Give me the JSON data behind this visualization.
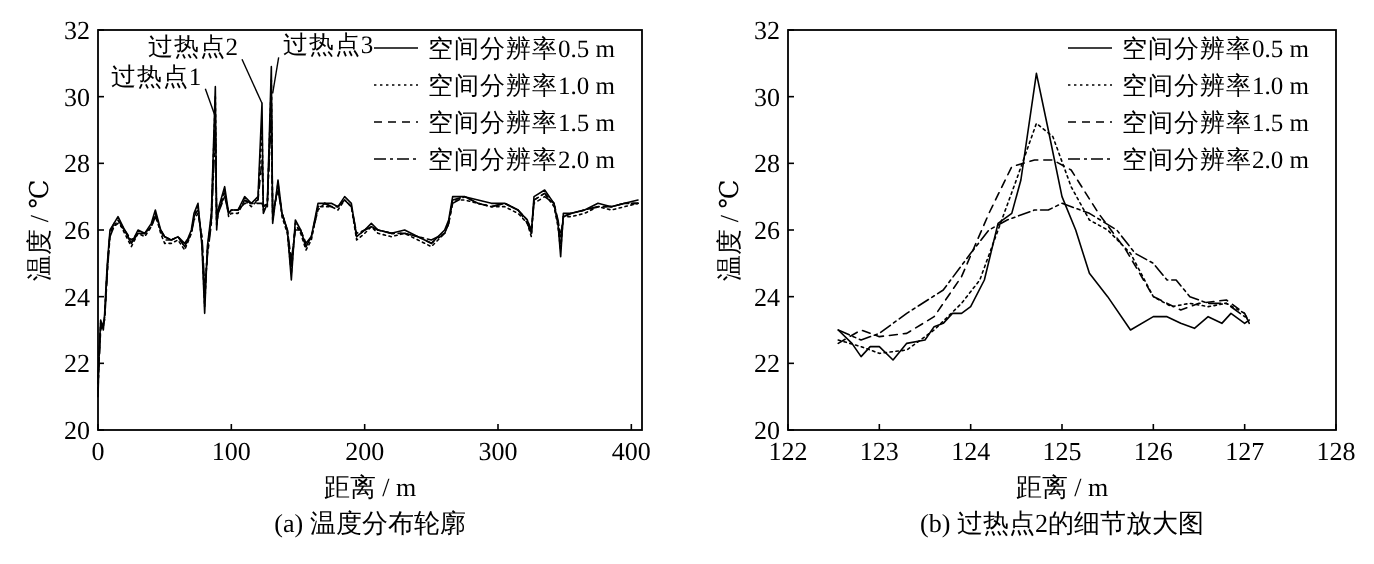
{
  "chart_data": [
    {
      "type": "line",
      "title": "(a) 温度分布轮廓",
      "xlabel": "距离 / m",
      "ylabel": "温度 / ℃",
      "xlim": [
        0,
        408
      ],
      "xticks": [
        0,
        100,
        200,
        300,
        400
      ],
      "ylim": [
        20,
        32
      ],
      "yticks": [
        20,
        22,
        24,
        26,
        28,
        30,
        32
      ],
      "legend": "top right",
      "grid": false,
      "x": [
        0,
        1,
        2,
        4,
        5,
        6,
        7,
        8,
        9,
        12,
        15,
        20,
        25,
        30,
        35,
        40,
        43,
        47,
        50,
        55,
        60,
        65,
        70,
        72,
        75,
        78,
        80,
        82,
        85,
        88,
        89,
        90,
        95,
        98,
        100,
        105,
        110,
        115,
        120,
        123,
        124,
        127,
        130,
        131,
        135,
        138,
        142,
        145,
        148,
        152,
        156,
        160,
        165,
        170,
        175,
        180,
        185,
        190,
        194,
        200,
        205,
        210,
        220,
        230,
        240,
        250,
        260,
        263,
        266,
        275,
        285,
        295,
        305,
        315,
        322,
        325,
        327,
        335,
        342,
        345,
        347,
        349,
        355,
        365,
        375,
        385,
        395,
        405
      ],
      "series": [
        {
          "name": "空间分辨率0.5 m",
          "color": "#000000",
          "line_style": "solid",
          "values": [
            21.0,
            22.5,
            23.3,
            23.0,
            23.5,
            24.3,
            25.0,
            25.5,
            26.0,
            26.2,
            26.4,
            26.0,
            25.6,
            26.0,
            25.9,
            26.2,
            26.6,
            26.0,
            25.8,
            25.7,
            25.8,
            25.5,
            26.0,
            26.5,
            26.8,
            25.5,
            23.5,
            25.5,
            26.5,
            30.3,
            26.0,
            26.6,
            27.3,
            26.5,
            26.6,
            26.6,
            27.0,
            26.8,
            27.0,
            29.8,
            26.5,
            26.8,
            30.9,
            26.2,
            27.5,
            26.5,
            26.0,
            24.5,
            26.3,
            26.0,
            25.5,
            25.8,
            26.8,
            26.8,
            26.8,
            26.7,
            27.0,
            26.8,
            25.8,
            26.0,
            26.2,
            26.0,
            25.9,
            26.0,
            25.8,
            25.6,
            26.0,
            26.3,
            27.0,
            27.0,
            26.9,
            26.8,
            26.8,
            26.6,
            26.3,
            25.9,
            27.0,
            27.2,
            26.8,
            26.2,
            25.2,
            26.5,
            26.5,
            26.6,
            26.8,
            26.7,
            26.8,
            26.9
          ]
        },
        {
          "name": "空间分辨率1.0 m",
          "color": "#000000",
          "line_style": "dotted",
          "values": [
            21.2,
            22.4,
            23.2,
            23.1,
            23.4,
            24.2,
            24.9,
            25.4,
            25.9,
            26.1,
            26.3,
            25.9,
            25.5,
            25.9,
            25.8,
            26.1,
            26.5,
            25.9,
            25.6,
            25.6,
            25.7,
            25.4,
            25.9,
            26.4,
            26.7,
            25.6,
            23.7,
            25.4,
            26.4,
            30.0,
            26.1,
            26.5,
            27.2,
            26.4,
            26.5,
            26.5,
            26.9,
            26.7,
            26.9,
            29.2,
            26.6,
            26.7,
            30.5,
            26.3,
            27.4,
            26.4,
            25.9,
            24.7,
            26.2,
            25.9,
            25.4,
            25.7,
            26.7,
            26.7,
            26.7,
            26.6,
            26.9,
            26.7,
            25.7,
            25.9,
            26.1,
            25.9,
            25.8,
            25.9,
            25.7,
            25.5,
            25.9,
            26.2,
            26.9,
            26.9,
            26.8,
            26.7,
            26.7,
            26.5,
            26.2,
            25.8,
            26.9,
            27.1,
            26.7,
            26.1,
            25.4,
            26.4,
            26.4,
            26.5,
            26.7,
            26.6,
            26.7,
            26.8
          ]
        },
        {
          "name": "空间分辨率1.5 m",
          "color": "#000000",
          "line_style": "dashed",
          "values": [
            21.4,
            22.3,
            23.1,
            23.2,
            23.4,
            24.1,
            24.8,
            25.4,
            25.9,
            26.2,
            26.3,
            26.0,
            25.6,
            25.9,
            25.9,
            26.1,
            26.5,
            26.0,
            25.7,
            25.7,
            25.8,
            25.5,
            25.9,
            26.4,
            26.6,
            25.7,
            24.0,
            25.3,
            26.3,
            29.5,
            26.2,
            26.5,
            27.1,
            26.5,
            26.6,
            26.6,
            26.9,
            26.8,
            26.9,
            28.1,
            26.7,
            26.8,
            30.0,
            26.4,
            27.3,
            26.5,
            26.0,
            24.9,
            26.1,
            26.0,
            25.5,
            25.8,
            26.7,
            26.8,
            26.7,
            26.7,
            26.9,
            26.7,
            25.8,
            26.0,
            26.1,
            26.0,
            25.9,
            25.9,
            25.8,
            25.6,
            25.9,
            26.2,
            26.9,
            27.0,
            26.8,
            26.7,
            26.8,
            26.6,
            26.2,
            25.9,
            26.9,
            27.1,
            26.8,
            26.2,
            25.6,
            26.4,
            26.5,
            26.6,
            26.7,
            26.7,
            26.8,
            26.8
          ]
        },
        {
          "name": "空间分辨率2.0 m",
          "color": "#000000",
          "line_style": "dashdot",
          "values": [
            21.6,
            22.2,
            23.0,
            23.2,
            23.3,
            24.0,
            24.7,
            25.3,
            25.8,
            26.1,
            26.2,
            26.0,
            25.7,
            25.9,
            25.9,
            26.1,
            26.4,
            26.0,
            25.8,
            25.7,
            25.8,
            25.6,
            25.9,
            26.3,
            26.5,
            25.8,
            24.3,
            25.2,
            26.2,
            29.0,
            26.3,
            26.5,
            27.0,
            26.5,
            26.6,
            26.6,
            26.8,
            26.8,
            26.8,
            26.8,
            26.7,
            26.8,
            29.5,
            26.5,
            27.2,
            26.5,
            26.0,
            25.1,
            26.0,
            26.0,
            25.6,
            25.8,
            26.6,
            26.8,
            26.7,
            26.7,
            26.9,
            26.7,
            25.9,
            26.0,
            26.1,
            26.0,
            25.9,
            25.9,
            25.8,
            25.7,
            25.9,
            26.2,
            26.8,
            27.0,
            26.8,
            26.7,
            26.8,
            26.6,
            26.3,
            26.0,
            26.8,
            27.0,
            26.8,
            26.3,
            25.8,
            26.4,
            26.5,
            26.6,
            26.7,
            26.7,
            26.8,
            26.8
          ]
        }
      ],
      "annotations": [
        {
          "text": "过热点1",
          "x": 88,
          "y": 29.4
        },
        {
          "text": "过热点2",
          "x": 123,
          "y": 29.8
        },
        {
          "text": "过热点3",
          "x": 131,
          "y": 30.1
        }
      ]
    },
    {
      "type": "line",
      "title": "(b) 过热点2的细节放大图",
      "xlabel": "距离 / m",
      "ylabel": "温度 / ℃",
      "xlim": [
        122,
        128
      ],
      "xticks": [
        122,
        123,
        124,
        125,
        126,
        127,
        128
      ],
      "ylim": [
        20,
        32
      ],
      "yticks": [
        20,
        22,
        24,
        26,
        28,
        30,
        32
      ],
      "legend": "top right",
      "grid": false,
      "series": [
        {
          "name": "空间分辨率0.5 m",
          "color": "#000000",
          "line_style": "solid",
          "x": [
            122.55,
            122.7,
            122.8,
            122.9,
            123.0,
            123.15,
            123.3,
            123.5,
            123.6,
            123.7,
            123.8,
            123.9,
            124.0,
            124.15,
            124.3,
            124.45,
            124.55,
            124.72,
            124.85,
            125.0,
            125.15,
            125.3,
            125.5,
            125.75,
            126.0,
            126.15,
            126.3,
            126.45,
            126.6,
            126.75,
            126.85,
            127.0,
            127.05
          ],
          "values": [
            23.0,
            22.6,
            22.2,
            22.5,
            22.5,
            22.1,
            22.6,
            22.7,
            23.1,
            23.2,
            23.5,
            23.5,
            23.7,
            24.5,
            26.2,
            26.5,
            27.5,
            30.7,
            29.0,
            27.0,
            26.0,
            24.7,
            24.0,
            23.0,
            23.4,
            23.4,
            23.2,
            23.05,
            23.4,
            23.2,
            23.5,
            23.2,
            23.3
          ]
        },
        {
          "name": "空间分辨率1.0 m",
          "color": "#000000",
          "line_style": "dotted",
          "x": [
            122.55,
            122.8,
            123.0,
            123.3,
            123.6,
            123.9,
            124.1,
            124.3,
            124.5,
            124.72,
            124.9,
            125.1,
            125.3,
            125.5,
            125.75,
            126.0,
            126.2,
            126.4,
            126.6,
            126.8,
            127.0,
            127.05
          ],
          "values": [
            22.7,
            22.5,
            22.3,
            22.4,
            23.0,
            23.8,
            24.5,
            26.0,
            27.5,
            29.2,
            28.8,
            27.3,
            26.3,
            26.0,
            25.3,
            24.0,
            23.7,
            23.8,
            23.7,
            23.8,
            23.5,
            23.2
          ]
        },
        {
          "name": "空间分辨率1.5 m",
          "color": "#000000",
          "line_style": "dashed",
          "x": [
            122.55,
            122.8,
            123.0,
            123.3,
            123.6,
            123.9,
            124.2,
            124.45,
            124.7,
            124.9,
            125.1,
            125.4,
            125.7,
            126.0,
            126.3,
            126.5,
            126.8,
            127.0,
            127.05
          ],
          "values": [
            22.6,
            23.0,
            22.8,
            22.9,
            23.4,
            24.6,
            26.5,
            27.9,
            28.1,
            28.1,
            27.8,
            26.5,
            25.4,
            24.0,
            23.6,
            23.8,
            23.9,
            23.5,
            23.2
          ]
        },
        {
          "name": "空间分辨率2.0 m",
          "color": "#000000",
          "line_style": "dashdot",
          "x": [
            122.55,
            122.8,
            123.0,
            123.3,
            123.7,
            124.0,
            124.2,
            124.4,
            124.7,
            124.85,
            125.0,
            125.3,
            125.6,
            125.8,
            126.0,
            126.15,
            126.25,
            126.4,
            126.6,
            126.8,
            127.0,
            127.05
          ],
          "values": [
            23.0,
            22.7,
            22.9,
            23.5,
            24.2,
            25.3,
            26.0,
            26.3,
            26.6,
            26.6,
            26.8,
            26.5,
            26.0,
            25.3,
            25.0,
            24.5,
            24.5,
            24.0,
            23.8,
            23.8,
            23.4,
            23.4
          ]
        }
      ]
    }
  ]
}
